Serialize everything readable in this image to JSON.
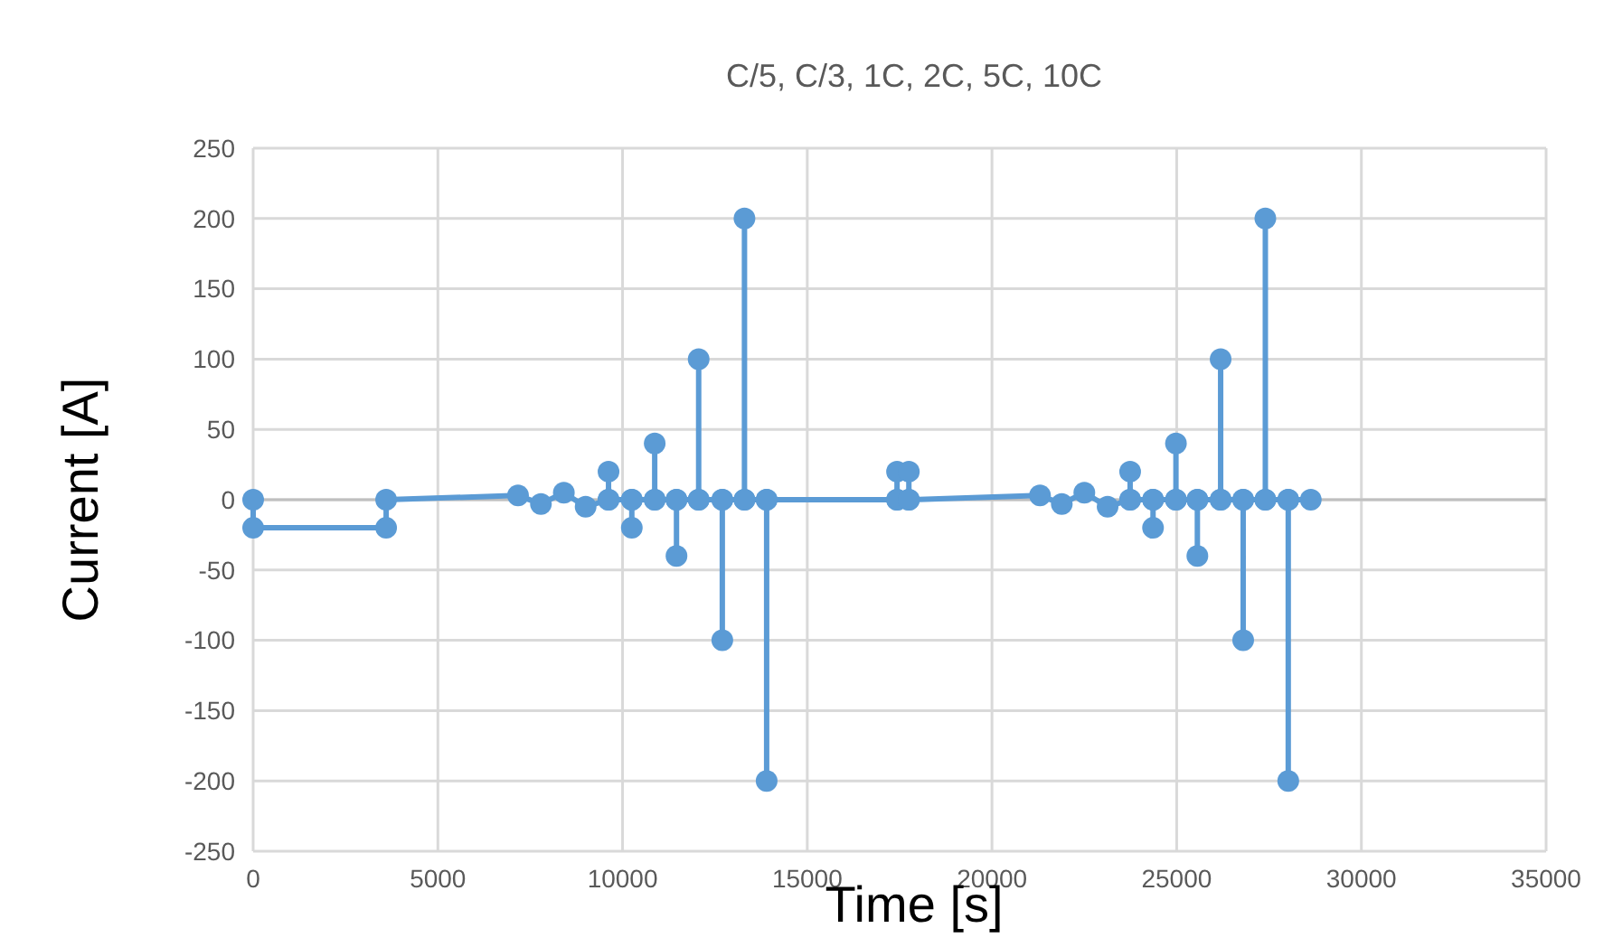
{
  "chart_data": {
    "type": "line",
    "title": "C/5, C/3, 1C, 2C, 5C, 10C",
    "xlabel": "Time [s]",
    "ylabel": "Current [A]",
    "xlim": [
      0,
      35000
    ],
    "xticks": [
      0,
      5000,
      10000,
      15000,
      20000,
      25000,
      30000,
      35000
    ],
    "ylim": [
      -250,
      250
    ],
    "yticks": [
      -250,
      -200,
      -150,
      -100,
      -50,
      0,
      50,
      100,
      150,
      200,
      250
    ],
    "grid": true,
    "marker": "circle",
    "line_style": "solid",
    "series": [
      {
        "color": "#5b9bd5",
        "x": [
          0,
          0,
          3600,
          3600,
          7170,
          7790,
          8410,
          9000,
          9620,
          9620,
          9620,
          10250,
          10250,
          10250,
          10870,
          10870,
          10870,
          11460,
          11460,
          11460,
          12060,
          12060,
          12060,
          12700,
          12700,
          12700,
          13300,
          13300,
          13300,
          13900,
          13900,
          13900,
          17430,
          17430,
          17430,
          17750,
          17750,
          17750,
          21300,
          21890,
          22500,
          23130,
          23740,
          23740,
          23740,
          24360,
          24360,
          24360,
          24980,
          24980,
          24980,
          25560,
          25560,
          25560,
          26190,
          26190,
          26190,
          26800,
          26800,
          26800,
          27400,
          27400,
          27400,
          28020,
          28020,
          28020,
          28630
        ],
        "values": [
          0,
          -20,
          -20,
          0,
          3,
          -3,
          5,
          -5,
          0,
          20,
          0,
          0,
          -20,
          0,
          0,
          40,
          0,
          0,
          -40,
          0,
          0,
          100,
          0,
          0,
          -100,
          0,
          0,
          200,
          0,
          0,
          -200,
          0,
          0,
          20,
          0,
          0,
          20,
          0,
          3,
          -3,
          5,
          -5,
          0,
          20,
          0,
          0,
          -20,
          0,
          0,
          40,
          0,
          0,
          -40,
          0,
          0,
          100,
          0,
          0,
          -100,
          0,
          0,
          200,
          0,
          0,
          -200,
          0,
          0
        ]
      }
    ]
  }
}
